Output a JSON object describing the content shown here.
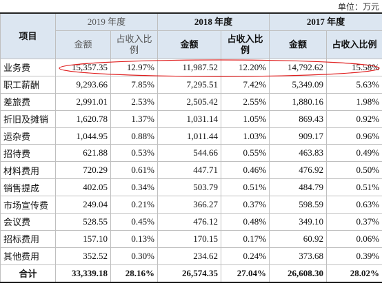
{
  "unit": "单位：万元",
  "table": {
    "header": {
      "item": "项目",
      "years": [
        "2019 年度",
        "2018 年度",
        "2017 年度"
      ],
      "columns": [
        "金额",
        "占收入比例",
        "金额",
        "占收入比例",
        "金额",
        "占收入比例"
      ]
    },
    "rows": [
      [
        "业务费",
        "15,357.35",
        "12.97%",
        "11,987.52",
        "12.20%",
        "14,792.62",
        "15.58%"
      ],
      [
        "职工薪酬",
        "9,293.66",
        "7.85%",
        "7,295.51",
        "7.42%",
        "5,349.09",
        "5.63%"
      ],
      [
        "差旅费",
        "2,991.01",
        "2.53%",
        "2,505.42",
        "2.55%",
        "1,880.16",
        "1.98%"
      ],
      [
        "折旧及摊销",
        "1,620.78",
        "1.37%",
        "1,031.14",
        "1.05%",
        "869.43",
        "0.92%"
      ],
      [
        "运杂费",
        "1,044.95",
        "0.88%",
        "1,011.44",
        "1.03%",
        "909.17",
        "0.96%"
      ],
      [
        "招待费",
        "621.88",
        "0.53%",
        "544.66",
        "0.55%",
        "463.83",
        "0.49%"
      ],
      [
        "材料费用",
        "720.29",
        "0.61%",
        "447.71",
        "0.46%",
        "476.92",
        "0.50%"
      ],
      [
        "销售提成",
        "402.05",
        "0.34%",
        "503.79",
        "0.51%",
        "484.79",
        "0.51%"
      ],
      [
        "市场宣传费",
        "249.04",
        "0.21%",
        "366.27",
        "0.37%",
        "598.59",
        "0.63%"
      ],
      [
        "会议费",
        "528.55",
        "0.45%",
        "476.12",
        "0.48%",
        "349.10",
        "0.37%"
      ],
      [
        "招标费用",
        "157.10",
        "0.13%",
        "170.15",
        "0.17%",
        "60.92",
        "0.06%"
      ],
      [
        "其他费用",
        "352.52",
        "0.30%",
        "234.62",
        "0.24%",
        "373.68",
        "0.39%"
      ],
      [
        "合计",
        "33,339.18",
        "28.16%",
        "26,574.35",
        "27.04%",
        "26,608.30",
        "28.02%"
      ]
    ]
  }
}
